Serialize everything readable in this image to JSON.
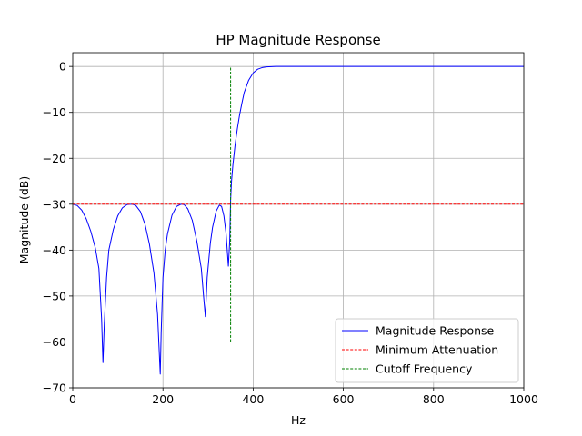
{
  "chart_data": {
    "type": "line",
    "title": "HP Magnitude Response",
    "xlabel": "Hz",
    "ylabel": "Magnitude (dB)",
    "xlim": [
      0,
      1000
    ],
    "ylim": [
      -70,
      3
    ],
    "xticks": [
      0,
      200,
      400,
      600,
      800,
      1000
    ],
    "yticks": [
      0,
      -10,
      -20,
      -30,
      -40,
      -50,
      -60,
      -70
    ],
    "grid": true,
    "legend_position": "lower-right",
    "series": [
      {
        "name": "Magnitude Response",
        "color": "#0000ff",
        "style": "solid",
        "x": [
          0,
          10,
          20,
          30,
          40,
          50,
          58,
          64,
          67,
          70,
          75,
          80,
          90,
          100,
          110,
          120,
          130,
          135,
          140,
          150,
          160,
          170,
          180,
          188,
          194,
          196,
          200,
          205,
          210,
          220,
          230,
          240,
          247,
          255,
          265,
          275,
          285,
          290,
          294,
          298,
          305,
          310,
          318,
          325,
          330,
          335,
          340,
          345,
          348,
          350,
          352,
          355,
          360,
          365,
          370,
          375,
          380,
          390,
          400,
          410,
          420,
          430,
          440,
          450,
          470,
          500,
          600,
          700,
          800,
          900,
          1000
        ],
        "y": [
          -30,
          -30.3,
          -31.3,
          -33.2,
          -35.9,
          -39.5,
          -44,
          -55,
          -64.5,
          -56,
          -46,
          -40,
          -35.5,
          -32.5,
          -30.8,
          -30.1,
          -30,
          -30.1,
          -30.3,
          -31.6,
          -34.3,
          -38.7,
          -45,
          -54,
          -67,
          -58,
          -46,
          -40,
          -36.5,
          -32.4,
          -30.5,
          -30,
          -30.1,
          -31,
          -33.5,
          -38,
          -44,
          -50,
          -54.5,
          -46,
          -38.5,
          -35,
          -31.5,
          -30.2,
          -30.5,
          -32.5,
          -36.5,
          -43.5,
          -38,
          -29,
          -25,
          -21.5,
          -17,
          -13.5,
          -10.5,
          -8,
          -5.7,
          -3,
          -1.4,
          -0.6,
          -0.25,
          -0.1,
          -0.05,
          0,
          0,
          0,
          0,
          0,
          0,
          0,
          0
        ]
      },
      {
        "name": "Minimum Attenuation",
        "color": "#ff0000",
        "style": "dashed",
        "x": [
          0,
          1000
        ],
        "y": [
          -30,
          -30
        ]
      },
      {
        "name": "Cutoff Frequency",
        "color": "#008000",
        "style": "dashed",
        "x": [
          350,
          350
        ],
        "y": [
          -60,
          0
        ]
      }
    ]
  }
}
